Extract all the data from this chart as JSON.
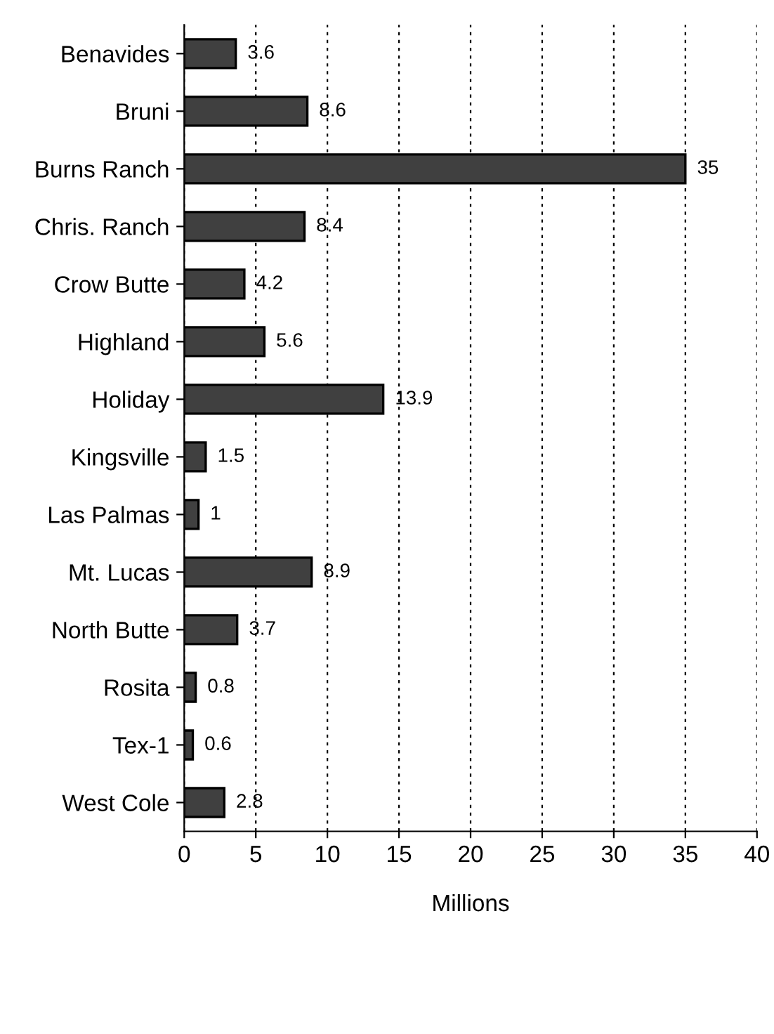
{
  "chart_data": {
    "type": "bar",
    "orientation": "horizontal",
    "xlabel": "Millions",
    "categories": [
      "Benavides",
      "Bruni",
      "Burns Ranch",
      "Chris. Ranch",
      "Crow Butte",
      "Highland",
      "Holiday",
      "Kingsville",
      "Las Palmas",
      "Mt. Lucas",
      "North Butte",
      "Rosita",
      "Tex-1",
      "West Cole"
    ],
    "values": [
      3.6,
      8.6,
      35,
      8.4,
      4.2,
      5.6,
      13.9,
      1.5,
      1,
      8.9,
      3.7,
      0.8,
      0.6,
      2.8
    ],
    "color": "#404040",
    "xlim": [
      0,
      40
    ],
    "xticks": [
      0,
      5,
      10,
      15,
      20,
      25,
      30,
      35,
      40
    ],
    "grid": "x",
    "data_labels": true
  }
}
